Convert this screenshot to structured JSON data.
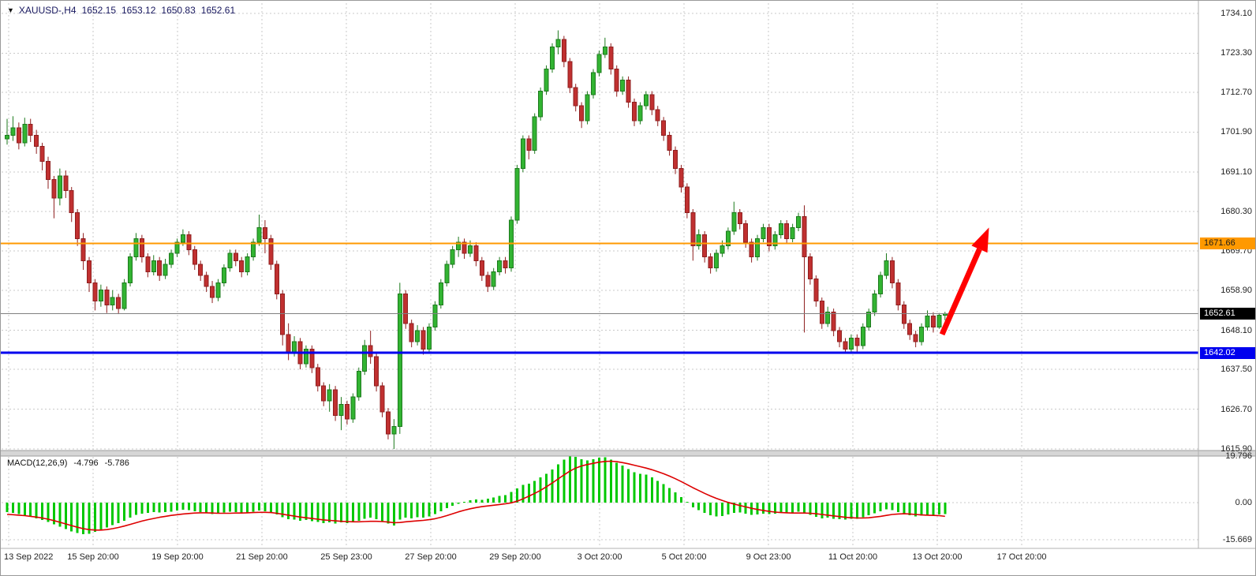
{
  "title": {
    "dropdown_icon": "▼",
    "symbol_period": "XAUUSD-,H4",
    "open": "1652.15",
    "high": "1653.12",
    "low": "1650.83",
    "close": "1652.61"
  },
  "colors": {
    "bull_fill": "#32b432",
    "bull_stroke": "#1d7a1d",
    "bear_fill": "#c03030",
    "bear_stroke": "#8f1f1f",
    "grid": "#c9c9c9",
    "macd_histogram": "#00c800",
    "macd_signal": "#dd0000",
    "arrow": "#ff0000",
    "resistance_line": "#ff9900",
    "support_line": "#0000ee",
    "current_price_line": "#808080"
  },
  "chart_data": {
    "type": "candlestick",
    "symbol": "XAUUSD-",
    "timeframe": "H4",
    "background": "#ffffff",
    "grid": "dotted",
    "current_bar": {
      "open": 1652.15,
      "high": 1653.12,
      "low": 1650.83,
      "close": 1652.61
    },
    "price_axis_labels": [
      "1734.10",
      "1723.30",
      "1712.70",
      "1701.90",
      "1691.10",
      "1680.30",
      "1669.70",
      "1658.90",
      "1648.10",
      "1637.50",
      "1626.70",
      "1615.90"
    ],
    "time_axis_labels": [
      "13 Sep 2022",
      "15 Sep 20:00",
      "19 Sep 20:00",
      "21 Sep 20:00",
      "25 Sep 23:00",
      "27 Sep 20:00",
      "29 Sep 20:00",
      "3 Oct 20:00",
      "5 Oct 20:00",
      "9 Oct 23:00",
      "11 Oct 20:00",
      "13 Oct 20:00",
      "17 Oct 20:00"
    ],
    "horizontal_lines": [
      {
        "name": "resistance",
        "price": 1671.66,
        "label": "1671.66",
        "color": "#ff9900",
        "width": 2,
        "badge_bg": "#ff9900",
        "badge_fg": "#1a1a1a"
      },
      {
        "name": "current-price",
        "price": 1652.61,
        "label": "1652.61",
        "color": "#808080",
        "width": 1,
        "badge_bg": "#000000",
        "badge_fg": "#ffffff"
      },
      {
        "name": "support",
        "price": 1642.02,
        "label": "1642.02",
        "color": "#0000ee",
        "width": 3,
        "badge_bg": "#0000ee",
        "badge_fg": "#ffffff"
      }
    ],
    "candles": [
      [
        1700,
        1705.5,
        1698.5,
        1701
      ],
      [
        1701,
        1706.2,
        1699.5,
        1703
      ],
      [
        1703,
        1704.5,
        1697.2,
        1699
      ],
      [
        1699,
        1705.8,
        1698,
        1704
      ],
      [
        1704,
        1705.5,
        1699.2,
        1701
      ],
      [
        1701,
        1702.5,
        1696,
        1698
      ],
      [
        1698,
        1699,
        1691.5,
        1694
      ],
      [
        1694,
        1695.2,
        1686.5,
        1689
      ],
      [
        1689,
        1690,
        1678.5,
        1684
      ],
      [
        1684,
        1692,
        1682,
        1690
      ],
      [
        1690,
        1691.5,
        1684,
        1686
      ],
      [
        1686,
        1687,
        1677.5,
        1680
      ],
      [
        1680,
        1681,
        1671,
        1673
      ],
      [
        1673,
        1674.5,
        1664.5,
        1667
      ],
      [
        1667,
        1668,
        1658.5,
        1661
      ],
      [
        1661,
        1662,
        1653.5,
        1656
      ],
      [
        1656,
        1660.5,
        1654.5,
        1659
      ],
      [
        1659,
        1660,
        1652.8,
        1655
      ],
      [
        1655,
        1659,
        1653.5,
        1657
      ],
      [
        1657,
        1658,
        1652.5,
        1654
      ],
      [
        1654,
        1662,
        1653.5,
        1661
      ],
      [
        1661,
        1669,
        1660,
        1668
      ],
      [
        1668,
        1674.5,
        1667,
        1673
      ],
      [
        1673,
        1674,
        1666.5,
        1668
      ],
      [
        1668,
        1669,
        1662.5,
        1664
      ],
      [
        1664,
        1668.5,
        1663,
        1667
      ],
      [
        1667,
        1668,
        1661.5,
        1663
      ],
      [
        1663,
        1667.5,
        1662,
        1666
      ],
      [
        1666,
        1670,
        1665,
        1669
      ],
      [
        1669,
        1673,
        1668,
        1672
      ],
      [
        1672,
        1675.5,
        1671,
        1674
      ],
      [
        1674,
        1675,
        1668.5,
        1670
      ],
      [
        1670,
        1671,
        1664.5,
        1666
      ],
      [
        1666,
        1667,
        1661.5,
        1663
      ],
      [
        1663,
        1664,
        1658.5,
        1660
      ],
      [
        1660,
        1661.5,
        1655.5,
        1657
      ],
      [
        1657,
        1662,
        1656,
        1661
      ],
      [
        1661,
        1666,
        1660,
        1665
      ],
      [
        1665,
        1670,
        1664,
        1669
      ],
      [
        1669,
        1670,
        1665.5,
        1667
      ],
      [
        1667,
        1668,
        1662.5,
        1664
      ],
      [
        1664,
        1669,
        1663,
        1668
      ],
      [
        1668,
        1673,
        1667,
        1672
      ],
      [
        1672,
        1679.5,
        1671,
        1676
      ],
      [
        1676,
        1678,
        1669,
        1673
      ],
      [
        1673,
        1674,
        1664.5,
        1666
      ],
      [
        1666,
        1667,
        1656.5,
        1658
      ],
      [
        1658,
        1659,
        1644,
        1647
      ],
      [
        1647,
        1650,
        1640,
        1642
      ],
      [
        1642,
        1646.5,
        1641,
        1645
      ],
      [
        1645,
        1646,
        1637.5,
        1639
      ],
      [
        1639,
        1644,
        1638,
        1643
      ],
      [
        1643,
        1644,
        1636.5,
        1638
      ],
      [
        1638,
        1639,
        1631.5,
        1633
      ],
      [
        1633,
        1634,
        1627.5,
        1629
      ],
      [
        1629,
        1633.5,
        1626,
        1632
      ],
      [
        1632,
        1633,
        1623.5,
        1625
      ],
      [
        1625,
        1630,
        1621,
        1628
      ],
      [
        1628,
        1629,
        1622.5,
        1624
      ],
      [
        1624,
        1631,
        1623,
        1630
      ],
      [
        1630,
        1638,
        1629,
        1637
      ],
      [
        1637,
        1645.5,
        1636,
        1644
      ],
      [
        1644,
        1648,
        1639,
        1641
      ],
      [
        1641,
        1642,
        1631.5,
        1633
      ],
      [
        1633,
        1634,
        1624.5,
        1626
      ],
      [
        1626,
        1627,
        1618.5,
        1620
      ],
      [
        1620,
        1624,
        1615.9,
        1622
      ],
      [
        1622,
        1661,
        1620,
        1658
      ],
      [
        1658,
        1659,
        1648.5,
        1650
      ],
      [
        1650,
        1651,
        1643.5,
        1645
      ],
      [
        1645,
        1649.5,
        1644,
        1648
      ],
      [
        1648,
        1649,
        1641.5,
        1643
      ],
      [
        1643,
        1650,
        1642,
        1649
      ],
      [
        1649,
        1656,
        1648,
        1655
      ],
      [
        1655,
        1662,
        1654,
        1661
      ],
      [
        1661,
        1667,
        1660,
        1666
      ],
      [
        1666,
        1671,
        1665,
        1670
      ],
      [
        1670,
        1673.5,
        1668,
        1672
      ],
      [
        1672,
        1673,
        1667.5,
        1669
      ],
      [
        1669,
        1672.5,
        1668,
        1671
      ],
      [
        1671,
        1672,
        1665.5,
        1667
      ],
      [
        1667,
        1668,
        1661.5,
        1663
      ],
      [
        1663,
        1664,
        1658.5,
        1660
      ],
      [
        1660,
        1665,
        1659,
        1664
      ],
      [
        1664,
        1668,
        1663,
        1667
      ],
      [
        1667,
        1668,
        1663.5,
        1665
      ],
      [
        1665,
        1679,
        1664,
        1678
      ],
      [
        1678,
        1693,
        1677,
        1692
      ],
      [
        1692,
        1701,
        1691,
        1700
      ],
      [
        1700,
        1701,
        1694.5,
        1697
      ],
      [
        1697,
        1707,
        1696,
        1706
      ],
      [
        1706,
        1714,
        1705,
        1713
      ],
      [
        1713,
        1720,
        1712,
        1719
      ],
      [
        1719,
        1726,
        1718,
        1725
      ],
      [
        1725,
        1729.5,
        1723,
        1727
      ],
      [
        1727,
        1728,
        1719.5,
        1721
      ],
      [
        1721,
        1722,
        1712.5,
        1714
      ],
      [
        1714,
        1715,
        1707.5,
        1709
      ],
      [
        1709,
        1710,
        1703,
        1705
      ],
      [
        1705,
        1713,
        1704,
        1712
      ],
      [
        1712,
        1719,
        1711,
        1718
      ],
      [
        1718,
        1724,
        1717,
        1723
      ],
      [
        1723,
        1727.5,
        1722,
        1725
      ],
      [
        1725,
        1726,
        1717.5,
        1719
      ],
      [
        1719,
        1720,
        1711.5,
        1713
      ],
      [
        1713,
        1717,
        1712,
        1716
      ],
      [
        1716,
        1717,
        1708.5,
        1710
      ],
      [
        1710,
        1711,
        1703.5,
        1705
      ],
      [
        1705,
        1710,
        1704,
        1709
      ],
      [
        1709,
        1713,
        1708,
        1712
      ],
      [
        1712,
        1713,
        1706.5,
        1708
      ],
      [
        1708,
        1709,
        1703.5,
        1705
      ],
      [
        1705,
        1706,
        1699.5,
        1701
      ],
      [
        1701,
        1702,
        1695.5,
        1697
      ],
      [
        1697,
        1698,
        1690.5,
        1692
      ],
      [
        1692,
        1693,
        1685.5,
        1687
      ],
      [
        1687,
        1688,
        1678.5,
        1680
      ],
      [
        1680,
        1681,
        1667,
        1671
      ],
      [
        1671,
        1675.5,
        1670,
        1674
      ],
      [
        1674,
        1675,
        1666.5,
        1668
      ],
      [
        1668,
        1669,
        1663.5,
        1665
      ],
      [
        1665,
        1670,
        1664,
        1669
      ],
      [
        1669,
        1672.5,
        1668,
        1671
      ],
      [
        1671,
        1676,
        1670,
        1675
      ],
      [
        1675,
        1683,
        1674,
        1680
      ],
      [
        1680,
        1681,
        1675.5,
        1677
      ],
      [
        1677,
        1678,
        1670.5,
        1672
      ],
      [
        1672,
        1673,
        1666.5,
        1668
      ],
      [
        1668,
        1674,
        1667,
        1673
      ],
      [
        1673,
        1677,
        1672,
        1676
      ],
      [
        1676,
        1677,
        1669.5,
        1671
      ],
      [
        1671,
        1675,
        1670,
        1674
      ],
      [
        1674,
        1678,
        1673,
        1677
      ],
      [
        1677,
        1678,
        1671.5,
        1673
      ],
      [
        1673,
        1677,
        1672,
        1676
      ],
      [
        1676,
        1680,
        1675,
        1679
      ],
      [
        1679,
        1682,
        1647.5,
        1668
      ],
      [
        1668,
        1669,
        1660.5,
        1662
      ],
      [
        1662,
        1663,
        1654.5,
        1656
      ],
      [
        1656,
        1657,
        1648.5,
        1650
      ],
      [
        1650,
        1654.5,
        1649,
        1653
      ],
      [
        1653,
        1654,
        1646.5,
        1648
      ],
      [
        1648,
        1649,
        1643.5,
        1645
      ],
      [
        1645,
        1646,
        1642,
        1643
      ],
      [
        1643,
        1647,
        1642.2,
        1646
      ],
      [
        1646,
        1647,
        1642,
        1644
      ],
      [
        1644,
        1650,
        1643,
        1649
      ],
      [
        1649,
        1654,
        1648,
        1653
      ],
      [
        1653,
        1659,
        1652,
        1658
      ],
      [
        1658,
        1664,
        1657,
        1663
      ],
      [
        1663,
        1669,
        1662,
        1667
      ],
      [
        1667,
        1668,
        1659.5,
        1661
      ],
      [
        1661,
        1662,
        1653.5,
        1655
      ],
      [
        1655,
        1656,
        1648.5,
        1650
      ],
      [
        1650,
        1651,
        1645.5,
        1647
      ],
      [
        1647,
        1648,
        1643.5,
        1645
      ],
      [
        1645,
        1650,
        1644,
        1649
      ],
      [
        1649,
        1653.5,
        1648,
        1652
      ],
      [
        1652,
        1653,
        1647.5,
        1649
      ],
      [
        1649,
        1652.8,
        1648.5,
        1652.2
      ],
      [
        1652.15,
        1653.12,
        1650.83,
        1652.61
      ]
    ],
    "macd": {
      "label": "MACD(12,26,9)",
      "main_value": "-4.796",
      "signal_value": "-5.786",
      "axis": [
        {
          "value": 19.796,
          "label": "19.796"
        },
        {
          "value": 0,
          "label": "0.00"
        },
        {
          "value": -15.669,
          "label": "-15.669"
        }
      ],
      "histogram": [
        -4.0,
        -4.4,
        -4.8,
        -5.4,
        -6.0,
        -6.6,
        -7.4,
        -8.2,
        -9.2,
        -10.2,
        -11.2,
        -12.2,
        -12.9,
        -13.4,
        -13.1,
        -12.4,
        -11.5,
        -10.5,
        -9.5,
        -8.6,
        -7.6,
        -6.4,
        -5.2,
        -4.6,
        -4.3,
        -4.0,
        -4.2,
        -4.0,
        -3.8,
        -3.4,
        -3.0,
        -3.2,
        -3.6,
        -4.0,
        -4.4,
        -4.8,
        -4.6,
        -4.2,
        -3.8,
        -4.0,
        -4.3,
        -4.1,
        -3.8,
        -3.4,
        -3.7,
        -4.2,
        -5.0,
        -6.2,
        -7.0,
        -7.2,
        -7.6,
        -7.4,
        -7.8,
        -8.2,
        -8.6,
        -8.4,
        -8.8,
        -8.4,
        -8.6,
        -8.2,
        -7.6,
        -6.8,
        -6.4,
        -7.0,
        -7.8,
        -8.8,
        -9.6,
        -7.2,
        -6.4,
        -6.6,
        -6.2,
        -6.4,
        -5.8,
        -4.8,
        -3.6,
        -2.4,
        -1.4,
        -0.5,
        0.4,
        1.0,
        1.4,
        1.2,
        1.6,
        2.2,
        2.8,
        3.2,
        4.5,
        6.0,
        7.5,
        8.0,
        9.2,
        10.6,
        12.2,
        14.0,
        16.2,
        18.2,
        19.8,
        19.4,
        18.4,
        17.8,
        18.4,
        19.0,
        19.2,
        18.2,
        16.8,
        15.6,
        14.2,
        12.8,
        12.2,
        11.8,
        10.6,
        9.2,
        7.8,
        6.2,
        4.4,
        2.4,
        0.3,
        -2.0,
        -3.2,
        -4.4,
        -5.4,
        -5.8,
        -5.6,
        -5.0,
        -4.4,
        -4.2,
        -4.6,
        -5.2,
        -5.0,
        -4.6,
        -4.8,
        -4.6,
        -4.2,
        -4.4,
        -4.2,
        -3.8,
        -4.4,
        -5.2,
        -6.0,
        -6.6,
        -6.4,
        -6.8,
        -7.0,
        -7.2,
        -6.8,
        -6.8,
        -6.2,
        -5.4,
        -4.5,
        -3.6,
        -2.8,
        -3.2,
        -4.0,
        -4.8,
        -5.4,
        -5.8,
        -5.5,
        -5.1,
        -5.2,
        -5.0,
        -4.796
      ],
      "signal": [
        -5.0,
        -5.1,
        -5.3,
        -5.5,
        -5.8,
        -6.1,
        -6.5,
        -7.0,
        -7.6,
        -8.3,
        -9.0,
        -9.7,
        -10.4,
        -11.0,
        -11.4,
        -11.6,
        -11.6,
        -11.4,
        -11.0,
        -10.5,
        -9.9,
        -9.2,
        -8.5,
        -7.8,
        -7.2,
        -6.7,
        -6.2,
        -5.8,
        -5.4,
        -5.1,
        -4.8,
        -4.6,
        -4.4,
        -4.3,
        -4.3,
        -4.4,
        -4.5,
        -4.5,
        -4.5,
        -4.4,
        -4.4,
        -4.3,
        -4.2,
        -4.1,
        -4.1,
        -4.2,
        -4.5,
        -4.9,
        -5.3,
        -5.7,
        -6.1,
        -6.4,
        -6.7,
        -7.0,
        -7.3,
        -7.5,
        -7.7,
        -7.9,
        -8.0,
        -8.1,
        -8.1,
        -8.0,
        -7.9,
        -7.9,
        -8.0,
        -8.2,
        -8.5,
        -8.4,
        -8.1,
        -7.9,
        -7.7,
        -7.5,
        -7.2,
        -6.8,
        -6.2,
        -5.5,
        -4.7,
        -3.9,
        -3.2,
        -2.6,
        -2.1,
        -1.7,
        -1.4,
        -1.1,
        -0.8,
        -0.5,
        -0.1,
        0.6,
        1.6,
        2.7,
        3.9,
        5.2,
        6.7,
        8.3,
        10.0,
        11.7,
        13.3,
        14.6,
        15.5,
        16.1,
        16.6,
        17.1,
        17.4,
        17.5,
        17.3,
        16.9,
        16.4,
        15.8,
        15.2,
        14.6,
        13.9,
        13.1,
        12.2,
        11.2,
        10.1,
        8.9,
        7.6,
        6.3,
        5.1,
        3.9,
        2.8,
        1.8,
        0.9,
        0.1,
        -0.6,
        -1.2,
        -1.8,
        -2.4,
        -2.9,
        -3.3,
        -3.7,
        -4.0,
        -4.2,
        -4.3,
        -4.4,
        -4.4,
        -4.4,
        -4.5,
        -4.7,
        -5.0,
        -5.3,
        -5.6,
        -5.9,
        -6.2,
        -6.4,
        -6.5,
        -6.5,
        -6.4,
        -6.1,
        -5.8,
        -5.4,
        -5.0,
        -4.8,
        -4.7,
        -4.8,
        -5.0,
        -5.2,
        -5.3,
        -5.4,
        -5.5,
        -5.786
      ]
    },
    "annotations": [
      {
        "type": "arrow",
        "from_bar": 159.5,
        "from_price": 1647,
        "to_bar": 167.5,
        "to_price": 1676,
        "color": "#ff0000"
      }
    ]
  }
}
